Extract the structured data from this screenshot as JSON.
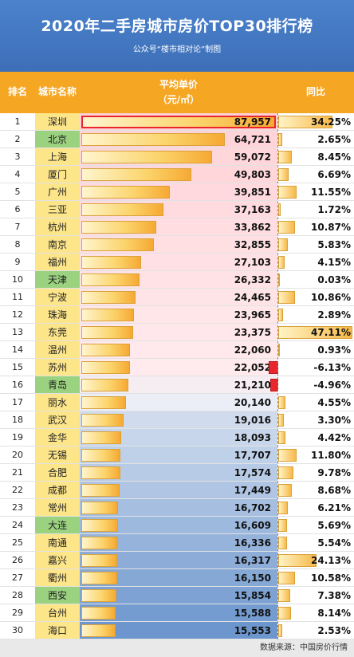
{
  "title": "2020年二手房城市房价TOP30排行榜",
  "subtitle": "公众号“楼市相对论”制图",
  "headers": {
    "rank": "排名",
    "city": "城市名称",
    "price_line1": "平均单价",
    "price_line2": "（元/㎡）",
    "yoy": "同比"
  },
  "footer": "数据来源：中国房价行情",
  "colors": {
    "header_blue": "#4b82cc",
    "header_orange": "#f5a623",
    "rank_highlight": "#9bd27f",
    "city_yellow": "#fde58a",
    "negative": "#e8262c"
  },
  "chart_data": {
    "type": "bar",
    "title": "2020年二手房城市房价TOP30排行榜",
    "categories": [
      "深圳",
      "北京",
      "上海",
      "厦门",
      "广州",
      "三亚",
      "杭州",
      "南京",
      "福州",
      "天津",
      "宁波",
      "珠海",
      "东莞",
      "温州",
      "苏州",
      "青岛",
      "丽水",
      "武汉",
      "金华",
      "无锡",
      "合肥",
      "成都",
      "常州",
      "大连",
      "南通",
      "嘉兴",
      "衢州",
      "西安",
      "台州",
      "海口"
    ],
    "ranks": [
      1,
      2,
      3,
      4,
      5,
      6,
      7,
      8,
      9,
      10,
      11,
      12,
      13,
      14,
      15,
      16,
      17,
      18,
      19,
      20,
      21,
      22,
      23,
      24,
      25,
      26,
      27,
      28,
      29,
      30
    ],
    "highlighted_ranks": [
      2,
      10,
      16,
      24,
      28
    ],
    "series": [
      {
        "name": "平均单价",
        "values": [
          87957,
          64721,
          59072,
          49803,
          39851,
          37163,
          33862,
          32855,
          27103,
          26332,
          24465,
          23965,
          23375,
          22060,
          22052,
          21210,
          20140,
          19016,
          18093,
          17707,
          17574,
          17449,
          16702,
          16609,
          16336,
          16317,
          16150,
          15854,
          15588,
          15553
        ],
        "labels": [
          "87,957",
          "64,721",
          "59,072",
          "49,803",
          "39,851",
          "37,163",
          "33,862",
          "32,855",
          "27,103",
          "26,332",
          "24,465",
          "23,965",
          "23,375",
          "22,060",
          "22,052",
          "21,210",
          "20,140",
          "19,016",
          "18,093",
          "17,707",
          "17,574",
          "17,449",
          "16,702",
          "16,609",
          "16,336",
          "16,317",
          "16,150",
          "15,854",
          "15,588",
          "15,553"
        ]
      },
      {
        "name": "同比",
        "values": [
          34.25,
          2.65,
          8.45,
          6.69,
          11.55,
          1.72,
          10.87,
          5.83,
          4.15,
          0.03,
          10.86,
          2.89,
          47.11,
          0.93,
          -6.13,
          -4.96,
          4.55,
          3.3,
          4.42,
          11.8,
          9.78,
          8.68,
          6.21,
          5.69,
          5.54,
          24.13,
          10.58,
          7.38,
          8.14,
          2.53
        ],
        "labels": [
          "34.25%",
          "2.65%",
          "8.45%",
          "6.69%",
          "11.55%",
          "1.72%",
          "10.87%",
          "5.83%",
          "4.15%",
          "0.03%",
          "10.86%",
          "2.89%",
          "47.11%",
          "0.93%",
          "-6.13%",
          "-4.96%",
          "4.55%",
          "3.30%",
          "4.42%",
          "11.80%",
          "9.78%",
          "8.68%",
          "6.21%",
          "5.69%",
          "5.54%",
          "24.13%",
          "10.58%",
          "7.38%",
          "8.14%",
          "2.53%"
        ]
      }
    ],
    "xlabel": "",
    "ylabel": "平均单价（元/㎡）"
  }
}
